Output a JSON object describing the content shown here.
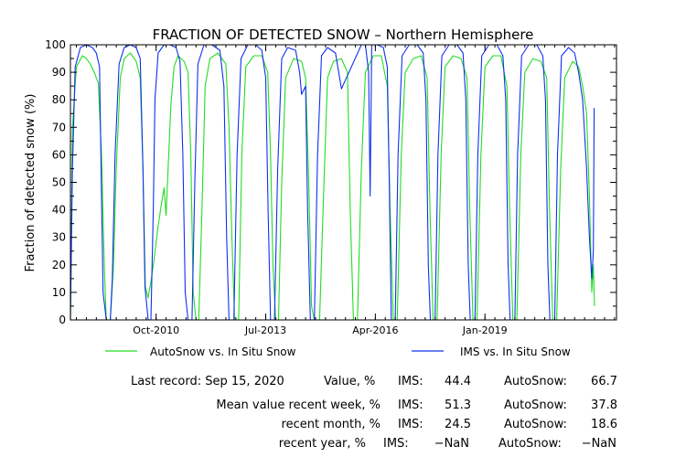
{
  "chart_data": {
    "type": "line",
    "title": "FRACTION OF DETECTED SNOW – Northern Hemisphere",
    "ylabel": "Fraction of detected snow (%)",
    "xlabel": "",
    "ylim": [
      0,
      100
    ],
    "yticks": [
      0,
      10,
      20,
      30,
      40,
      50,
      60,
      70,
      80,
      90,
      100
    ],
    "xticks": [
      {
        "label": "Oct-2010",
        "year": 2010.75
      },
      {
        "label": "Jul-2013",
        "year": 2013.5
      },
      {
        "label": "Apr-2016",
        "year": 2016.25
      },
      {
        "label": "Jan-2019",
        "year": 2019.0
      }
    ],
    "xlim_years": [
      2008.6,
      2022.3
    ],
    "grid": false,
    "legend_position": "bottom",
    "series": [
      {
        "name": "AutoSnow vs. In Situ Snow",
        "color": "#22dd22",
        "points": [
          [
            2008.6,
            0
          ],
          [
            2008.65,
            70
          ],
          [
            2008.75,
            92
          ],
          [
            2008.9,
            96
          ],
          [
            2009.0,
            95
          ],
          [
            2009.1,
            93
          ],
          [
            2009.2,
            90
          ],
          [
            2009.3,
            86
          ],
          [
            2009.38,
            60
          ],
          [
            2009.45,
            20
          ],
          [
            2009.5,
            0
          ],
          [
            2009.6,
            0
          ],
          [
            2009.68,
            20
          ],
          [
            2009.75,
            55
          ],
          [
            2009.85,
            88
          ],
          [
            2009.95,
            95
          ],
          [
            2010.1,
            97
          ],
          [
            2010.25,
            94
          ],
          [
            2010.35,
            88
          ],
          [
            2010.42,
            55
          ],
          [
            2010.48,
            12
          ],
          [
            2010.55,
            8
          ],
          [
            2010.62,
            14
          ],
          [
            2010.7,
            22
          ],
          [
            2010.78,
            32
          ],
          [
            2010.88,
            42
          ],
          [
            2010.95,
            48
          ],
          [
            2011.0,
            38
          ],
          [
            2011.05,
            55
          ],
          [
            2011.12,
            78
          ],
          [
            2011.2,
            92
          ],
          [
            2011.3,
            96
          ],
          [
            2011.45,
            94
          ],
          [
            2011.55,
            90
          ],
          [
            2011.62,
            60
          ],
          [
            2011.68,
            10
          ],
          [
            2011.75,
            0
          ],
          [
            2011.82,
            0
          ],
          [
            2011.9,
            40
          ],
          [
            2011.98,
            85
          ],
          [
            2012.1,
            95
          ],
          [
            2012.3,
            97
          ],
          [
            2012.5,
            93
          ],
          [
            2012.58,
            70
          ],
          [
            2012.65,
            30
          ],
          [
            2012.72,
            0
          ],
          [
            2012.82,
            0
          ],
          [
            2012.9,
            60
          ],
          [
            2013.0,
            92
          ],
          [
            2013.2,
            96
          ],
          [
            2013.4,
            96
          ],
          [
            2013.55,
            90
          ],
          [
            2013.62,
            60
          ],
          [
            2013.68,
            20
          ],
          [
            2013.75,
            0
          ],
          [
            2013.82,
            0
          ],
          [
            2013.9,
            50
          ],
          [
            2014.0,
            88
          ],
          [
            2014.2,
            95
          ],
          [
            2014.4,
            94
          ],
          [
            2014.5,
            88
          ],
          [
            2014.58,
            50
          ],
          [
            2014.65,
            5
          ],
          [
            2014.72,
            0
          ],
          [
            2014.85,
            0
          ],
          [
            2014.95,
            45
          ],
          [
            2015.05,
            88
          ],
          [
            2015.2,
            94
          ],
          [
            2015.4,
            95
          ],
          [
            2015.55,
            90
          ],
          [
            2015.62,
            40
          ],
          [
            2015.7,
            0
          ],
          [
            2015.8,
            0
          ],
          [
            2015.9,
            55
          ],
          [
            2016.0,
            90
          ],
          [
            2016.2,
            96
          ],
          [
            2016.4,
            96
          ],
          [
            2016.55,
            85
          ],
          [
            2016.62,
            40
          ],
          [
            2016.7,
            0
          ],
          [
            2016.8,
            0
          ],
          [
            2016.9,
            60
          ],
          [
            2017.0,
            90
          ],
          [
            2017.2,
            95
          ],
          [
            2017.4,
            96
          ],
          [
            2017.55,
            88
          ],
          [
            2017.62,
            40
          ],
          [
            2017.7,
            0
          ],
          [
            2017.8,
            0
          ],
          [
            2017.9,
            60
          ],
          [
            2018.0,
            92
          ],
          [
            2018.2,
            96
          ],
          [
            2018.4,
            95
          ],
          [
            2018.55,
            88
          ],
          [
            2018.62,
            40
          ],
          [
            2018.7,
            0
          ],
          [
            2018.8,
            0
          ],
          [
            2018.9,
            60
          ],
          [
            2019.0,
            92
          ],
          [
            2019.2,
            96
          ],
          [
            2019.4,
            96
          ],
          [
            2019.55,
            85
          ],
          [
            2019.62,
            40
          ],
          [
            2019.7,
            0
          ],
          [
            2019.8,
            0
          ],
          [
            2019.9,
            60
          ],
          [
            2020.0,
            90
          ],
          [
            2020.2,
            95
          ],
          [
            2020.4,
            94
          ],
          [
            2020.55,
            88
          ],
          [
            2020.62,
            40
          ],
          [
            2020.7,
            0
          ],
          [
            2020.8,
            0
          ],
          [
            2020.9,
            55
          ],
          [
            2021.0,
            88
          ],
          [
            2021.2,
            94
          ],
          [
            2021.35,
            92
          ],
          [
            2021.45,
            85
          ],
          [
            2021.55,
            75
          ],
          [
            2021.62,
            45
          ],
          [
            2021.68,
            10
          ],
          [
            2021.72,
            20
          ],
          [
            2021.75,
            5
          ]
        ]
      },
      {
        "name": "IMS vs. In Situ Snow",
        "color": "#1030f0",
        "points": [
          [
            2008.6,
            0
          ],
          [
            2008.65,
            55
          ],
          [
            2008.72,
            92
          ],
          [
            2008.85,
            99
          ],
          [
            2009.0,
            100
          ],
          [
            2009.15,
            99
          ],
          [
            2009.25,
            97
          ],
          [
            2009.33,
            92
          ],
          [
            2009.38,
            45
          ],
          [
            2009.42,
            10
          ],
          [
            2009.5,
            0
          ],
          [
            2009.6,
            0
          ],
          [
            2009.65,
            15
          ],
          [
            2009.72,
            60
          ],
          [
            2009.82,
            93
          ],
          [
            2009.95,
            99
          ],
          [
            2010.1,
            100
          ],
          [
            2010.25,
            99
          ],
          [
            2010.35,
            95
          ],
          [
            2010.42,
            55
          ],
          [
            2010.47,
            12
          ],
          [
            2010.55,
            0
          ],
          [
            2010.62,
            0
          ],
          [
            2010.68,
            40
          ],
          [
            2010.72,
            80
          ],
          [
            2010.8,
            97
          ],
          [
            2010.95,
            100
          ],
          [
            2011.1,
            100
          ],
          [
            2011.25,
            99
          ],
          [
            2011.35,
            94
          ],
          [
            2011.42,
            60
          ],
          [
            2011.48,
            10
          ],
          [
            2011.55,
            0
          ],
          [
            2011.65,
            0
          ],
          [
            2011.72,
            50
          ],
          [
            2011.8,
            93
          ],
          [
            2011.95,
            100
          ],
          [
            2012.15,
            100
          ],
          [
            2012.35,
            98
          ],
          [
            2012.45,
            85
          ],
          [
            2012.52,
            30
          ],
          [
            2012.58,
            0
          ],
          [
            2012.7,
            0
          ],
          [
            2012.78,
            60
          ],
          [
            2012.88,
            95
          ],
          [
            2013.05,
            100
          ],
          [
            2013.25,
            100
          ],
          [
            2013.4,
            98
          ],
          [
            2013.5,
            88
          ],
          [
            2013.56,
            40
          ],
          [
            2013.62,
            0
          ],
          [
            2013.72,
            0
          ],
          [
            2013.8,
            55
          ],
          [
            2013.9,
            95
          ],
          [
            2014.05,
            99
          ],
          [
            2014.25,
            98
          ],
          [
            2014.35,
            90
          ],
          [
            2014.4,
            82
          ],
          [
            2014.5,
            85
          ],
          [
            2014.55,
            40
          ],
          [
            2014.62,
            0
          ],
          [
            2014.72,
            0
          ],
          [
            2014.8,
            60
          ],
          [
            2014.9,
            96
          ],
          [
            2015.05,
            99
          ],
          [
            2015.25,
            97
          ],
          [
            2015.4,
            84
          ],
          [
            2015.9,
            100
          ],
          [
            2016.0,
            100
          ],
          [
            2016.08,
            90
          ],
          [
            2016.12,
            45
          ],
          [
            2016.16,
            100
          ],
          [
            2016.3,
            100
          ],
          [
            2016.45,
            99
          ],
          [
            2016.55,
            92
          ],
          [
            2016.6,
            50
          ],
          [
            2016.65,
            0
          ],
          [
            2016.75,
            0
          ],
          [
            2016.82,
            60
          ],
          [
            2016.92,
            96
          ],
          [
            2017.1,
            100
          ],
          [
            2017.3,
            100
          ],
          [
            2017.45,
            97
          ],
          [
            2017.52,
            80
          ],
          [
            2017.58,
            20
          ],
          [
            2017.63,
            0
          ],
          [
            2017.75,
            0
          ],
          [
            2017.82,
            60
          ],
          [
            2017.92,
            96
          ],
          [
            2018.1,
            100
          ],
          [
            2018.3,
            100
          ],
          [
            2018.45,
            97
          ],
          [
            2018.52,
            80
          ],
          [
            2018.58,
            20
          ],
          [
            2018.63,
            0
          ],
          [
            2018.75,
            0
          ],
          [
            2018.82,
            60
          ],
          [
            2018.92,
            96
          ],
          [
            2019.1,
            100
          ],
          [
            2019.3,
            100
          ],
          [
            2019.45,
            96
          ],
          [
            2019.52,
            80
          ],
          [
            2019.58,
            20
          ],
          [
            2019.63,
            0
          ],
          [
            2019.75,
            0
          ],
          [
            2019.82,
            60
          ],
          [
            2019.92,
            96
          ],
          [
            2020.1,
            100
          ],
          [
            2020.3,
            100
          ],
          [
            2020.45,
            96
          ],
          [
            2020.52,
            80
          ],
          [
            2020.58,
            20
          ],
          [
            2020.63,
            0
          ],
          [
            2020.75,
            0
          ],
          [
            2020.82,
            60
          ],
          [
            2020.92,
            96
          ],
          [
            2021.1,
            99
          ],
          [
            2021.25,
            97
          ],
          [
            2021.35,
            90
          ],
          [
            2021.45,
            80
          ],
          [
            2021.55,
            55
          ],
          [
            2021.62,
            30
          ],
          [
            2021.68,
            15
          ],
          [
            2021.72,
            25
          ],
          [
            2021.74,
            77
          ]
        ]
      }
    ]
  },
  "stats": {
    "last_record_label": "Last record: Sep 15, 2020",
    "value_label": "Value, %",
    "week_label": "Mean value recent week, %",
    "month_label": "recent month, %",
    "year_label": "recent year, %",
    "ims_label": "IMS:",
    "autosnow_label": "AutoSnow:",
    "last_ims": "44.4",
    "last_autosnow": "66.7",
    "week_ims": "51.3",
    "week_autosnow": "37.8",
    "month_ims": "24.5",
    "month_autosnow": "18.6",
    "year_ims": "−NaN",
    "year_autosnow": "−NaN"
  }
}
